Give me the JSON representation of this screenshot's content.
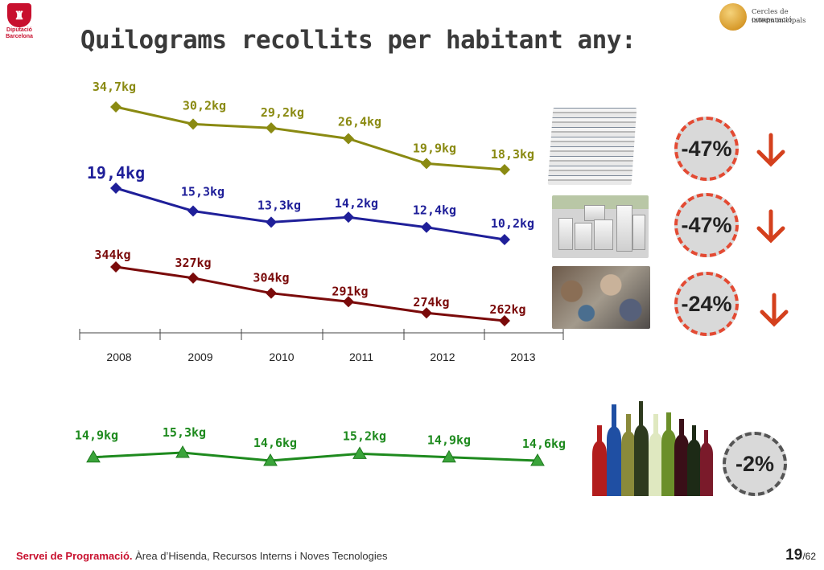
{
  "header": {
    "title": "Quilograms recollits per habitant any:",
    "logo_left_line1": "Diputació",
    "logo_left_line2": "Barcelona",
    "logo_right_line1": "Cercles de comparació",
    "logo_right_line2": "intermunicipals"
  },
  "chart_data": [
    {
      "type": "line",
      "categories": [
        "2008",
        "2009",
        "2010",
        "2011",
        "2012",
        "2013"
      ],
      "series": [
        {
          "values": [
            34.7,
            30.2,
            29.2,
            26.4,
            19.9,
            18.3
          ],
          "labels": [
            "34,7kg",
            "30,2kg",
            "29,2kg",
            "26,4kg",
            "19,9kg",
            "18,3kg"
          ],
          "color": "#8a8a12"
        },
        {
          "values": [
            19.4,
            15.3,
            13.3,
            14.2,
            12.4,
            10.2
          ],
          "labels": [
            "19,4kg",
            "15,3kg",
            "13,3kg",
            "14,2kg",
            "12,4kg",
            "10,2kg"
          ],
          "color": "#1f1f99"
        },
        {
          "values": [
            344,
            327,
            304,
            291,
            274,
            262
          ],
          "labels": [
            "344kg",
            "327kg",
            "304kg",
            "291kg",
            "274kg",
            "262kg"
          ],
          "color": "#7a0a0a"
        }
      ]
    },
    {
      "type": "line",
      "categories": [
        "2008",
        "2009",
        "2010",
        "2011",
        "2012",
        "2013"
      ],
      "series": [
        {
          "values": [
            14.9,
            15.3,
            14.6,
            15.2,
            14.9,
            14.6
          ],
          "labels": [
            "14,9kg",
            "15,3kg",
            "14,6kg",
            "15,2kg",
            "14,9kg",
            "14,6kg"
          ],
          "color": "#1e8a1e"
        }
      ]
    }
  ],
  "changes": {
    "paper": "-47%",
    "appliances": "-47%",
    "rest": "-24%",
    "glass": "-2%"
  },
  "footer": {
    "dept": "Servei de Programació.",
    "text": " Àrea d’Hisenda, Recursos Interns i Noves Tecnologies",
    "page": "19",
    "total": "/62"
  }
}
